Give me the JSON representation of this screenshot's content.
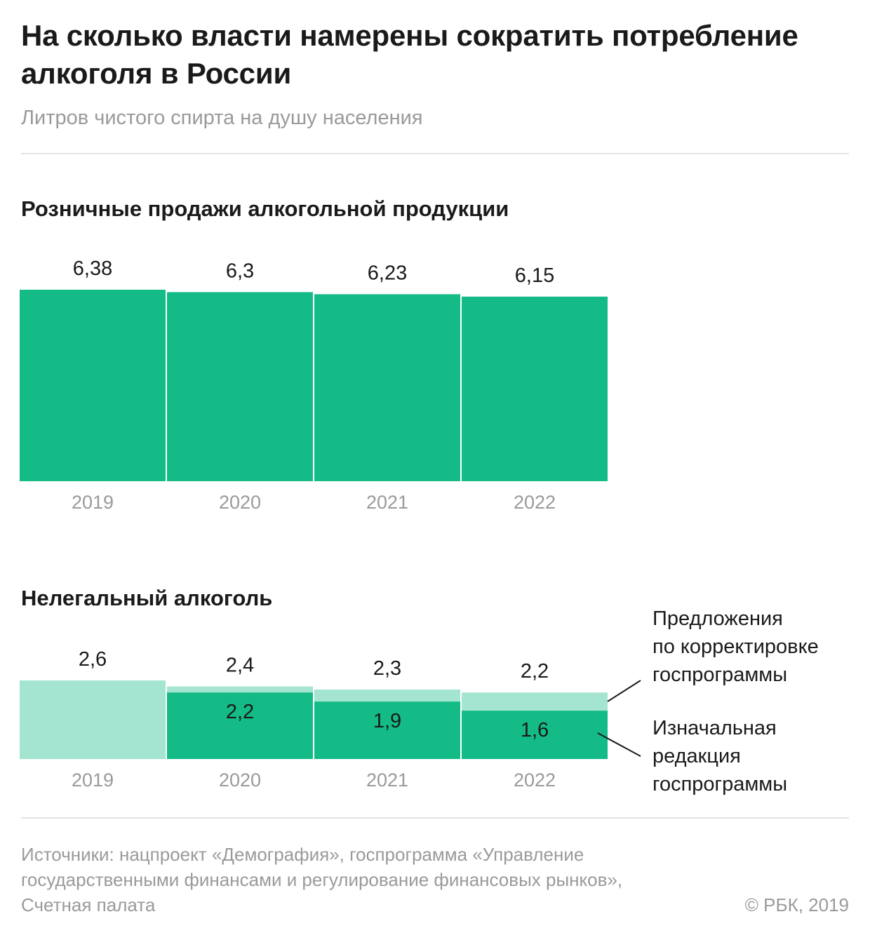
{
  "header": {
    "title": "На сколько власти намерены сократить потребление алкоголя в России",
    "subtitle": "Литров чистого спирта на душу населения"
  },
  "chart_data": [
    {
      "type": "bar",
      "title": "Розничные продажи алкогольной продукции",
      "categories": [
        "2019",
        "2020",
        "2021",
        "2022"
      ],
      "values": [
        6.38,
        6.3,
        6.23,
        6.15
      ],
      "value_labels": [
        "6,38",
        "6,3",
        "6,23",
        "6,15"
      ],
      "color": "#14bb87",
      "xlabel": "",
      "ylabel": "",
      "ylim": [
        0,
        6.38
      ]
    },
    {
      "type": "bar",
      "title": "Нелегальный алкоголь",
      "categories": [
        "2019",
        "2020",
        "2021",
        "2022"
      ],
      "series": [
        {
          "name": "Предложения по корректировке госпрограммы",
          "legend_lines": [
            "Предложения",
            "по корректировке",
            "госпрограммы"
          ],
          "values": [
            2.6,
            2.4,
            2.3,
            2.2
          ],
          "value_labels": [
            "2,6",
            "2,4",
            "2,3",
            "2,2"
          ],
          "color": "#a3e5d0"
        },
        {
          "name": "Изначальная редакция госпрограммы",
          "legend_lines": [
            "Изначальная",
            "редакция",
            "госпрограммы"
          ],
          "values": [
            null,
            2.2,
            1.9,
            1.6
          ],
          "value_labels": [
            null,
            "2,2",
            "1,9",
            "1,6"
          ],
          "color": "#14bb87"
        }
      ],
      "xlabel": "",
      "ylabel": "",
      "ylim": [
        0,
        2.6
      ]
    }
  ],
  "footer": {
    "source": "Источники: нацпроект «Демография», госпрограмма «Управление государственными финансами и регулирование финансовых рынков», Счетная палата",
    "copyright": "© РБК, 2019"
  }
}
